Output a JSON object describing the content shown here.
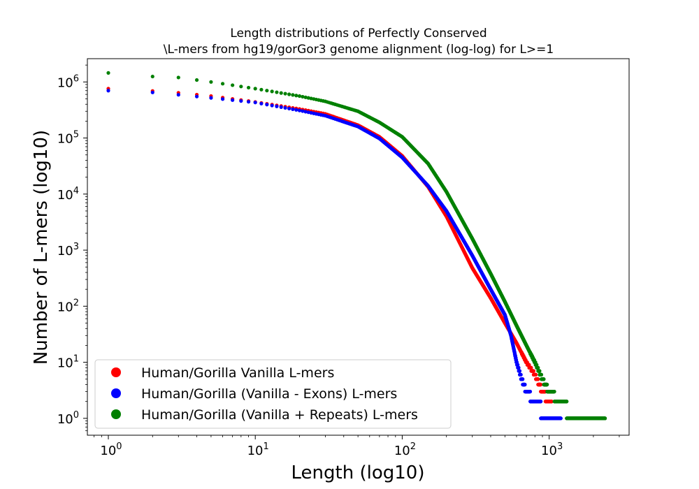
{
  "chart_data": {
    "type": "scatter",
    "title_line1": "Length distributions of Perfectly Conserved",
    "title_line2": "\\L-mers from hg19/gorGor3 genome alignment (log-log) for L>=1",
    "xlabel": "Length (log10)",
    "ylabel": "Number of L-mers (log10)",
    "x_scale": "log",
    "y_scale": "log",
    "xlim": [
      0.72,
      3500
    ],
    "ylim": [
      0.5,
      2600000
    ],
    "grid": false,
    "legend_position": "lower-left",
    "x_ticks": [
      {
        "value": 1,
        "base": "10",
        "exp": "0"
      },
      {
        "value": 10,
        "base": "10",
        "exp": "1"
      },
      {
        "value": 100,
        "base": "10",
        "exp": "2"
      },
      {
        "value": 1000,
        "base": "10",
        "exp": "3"
      }
    ],
    "y_ticks": [
      {
        "value": 1,
        "base": "10",
        "exp": "0"
      },
      {
        "value": 10,
        "base": "10",
        "exp": "1"
      },
      {
        "value": 100,
        "base": "10",
        "exp": "2"
      },
      {
        "value": 1000,
        "base": "10",
        "exp": "3"
      },
      {
        "value": 10000,
        "base": "10",
        "exp": "4"
      },
      {
        "value": 100000,
        "base": "10",
        "exp": "5"
      },
      {
        "value": 1000000,
        "base": "10",
        "exp": "6"
      }
    ],
    "series": [
      {
        "name": "Human/Gorilla Vanilla L-mers",
        "color": "#ff0000",
        "points": [
          [
            1,
            760000
          ],
          [
            2,
            690000
          ],
          [
            3,
            640000
          ],
          [
            5,
            560000
          ],
          [
            10,
            440000
          ],
          [
            20,
            330000
          ],
          [
            30,
            270000
          ],
          [
            50,
            170000
          ],
          [
            70,
            105000
          ],
          [
            100,
            48000
          ],
          [
            150,
            13500
          ],
          [
            200,
            4000
          ],
          [
            300,
            480
          ],
          [
            400,
            140
          ],
          [
            500,
            50
          ],
          [
            600,
            22
          ],
          [
            700,
            10
          ],
          [
            800,
            6
          ],
          [
            900,
            3
          ],
          [
            1000,
            2
          ],
          [
            1100,
            1
          ]
        ]
      },
      {
        "name": "Human/Gorilla (Vanilla - Exons) L-mers",
        "color": "#0000ff",
        "points": [
          [
            1,
            700000
          ],
          [
            2,
            650000
          ],
          [
            3,
            590000
          ],
          [
            5,
            520000
          ],
          [
            10,
            430000
          ],
          [
            20,
            310000
          ],
          [
            30,
            250000
          ],
          [
            50,
            160000
          ],
          [
            70,
            98000
          ],
          [
            100,
            45000
          ],
          [
            150,
            14000
          ],
          [
            200,
            5000
          ],
          [
            300,
            800
          ],
          [
            400,
            200
          ],
          [
            500,
            70
          ],
          [
            550,
            30
          ],
          [
            600,
            10
          ],
          [
            650,
            5
          ],
          [
            700,
            3
          ],
          [
            800,
            2
          ],
          [
            1000,
            1
          ],
          [
            1200,
            1
          ]
        ]
      },
      {
        "name": "Human/Gorilla (Vanilla + Repeats) L-mers",
        "color": "#008000",
        "points": [
          [
            1,
            1450000
          ],
          [
            2,
            1250000
          ],
          [
            3,
            1200000
          ],
          [
            5,
            1000000
          ],
          [
            10,
            760000
          ],
          [
            20,
            560000
          ],
          [
            30,
            450000
          ],
          [
            50,
            300000
          ],
          [
            70,
            190000
          ],
          [
            100,
            105000
          ],
          [
            150,
            35000
          ],
          [
            200,
            11000
          ],
          [
            300,
            1600
          ],
          [
            400,
            380
          ],
          [
            500,
            120
          ],
          [
            600,
            45
          ],
          [
            700,
            20
          ],
          [
            800,
            10
          ],
          [
            900,
            5
          ],
          [
            1000,
            3
          ],
          [
            1200,
            2
          ],
          [
            1500,
            1
          ],
          [
            2000,
            1
          ],
          [
            2400,
            1
          ]
        ]
      }
    ]
  }
}
